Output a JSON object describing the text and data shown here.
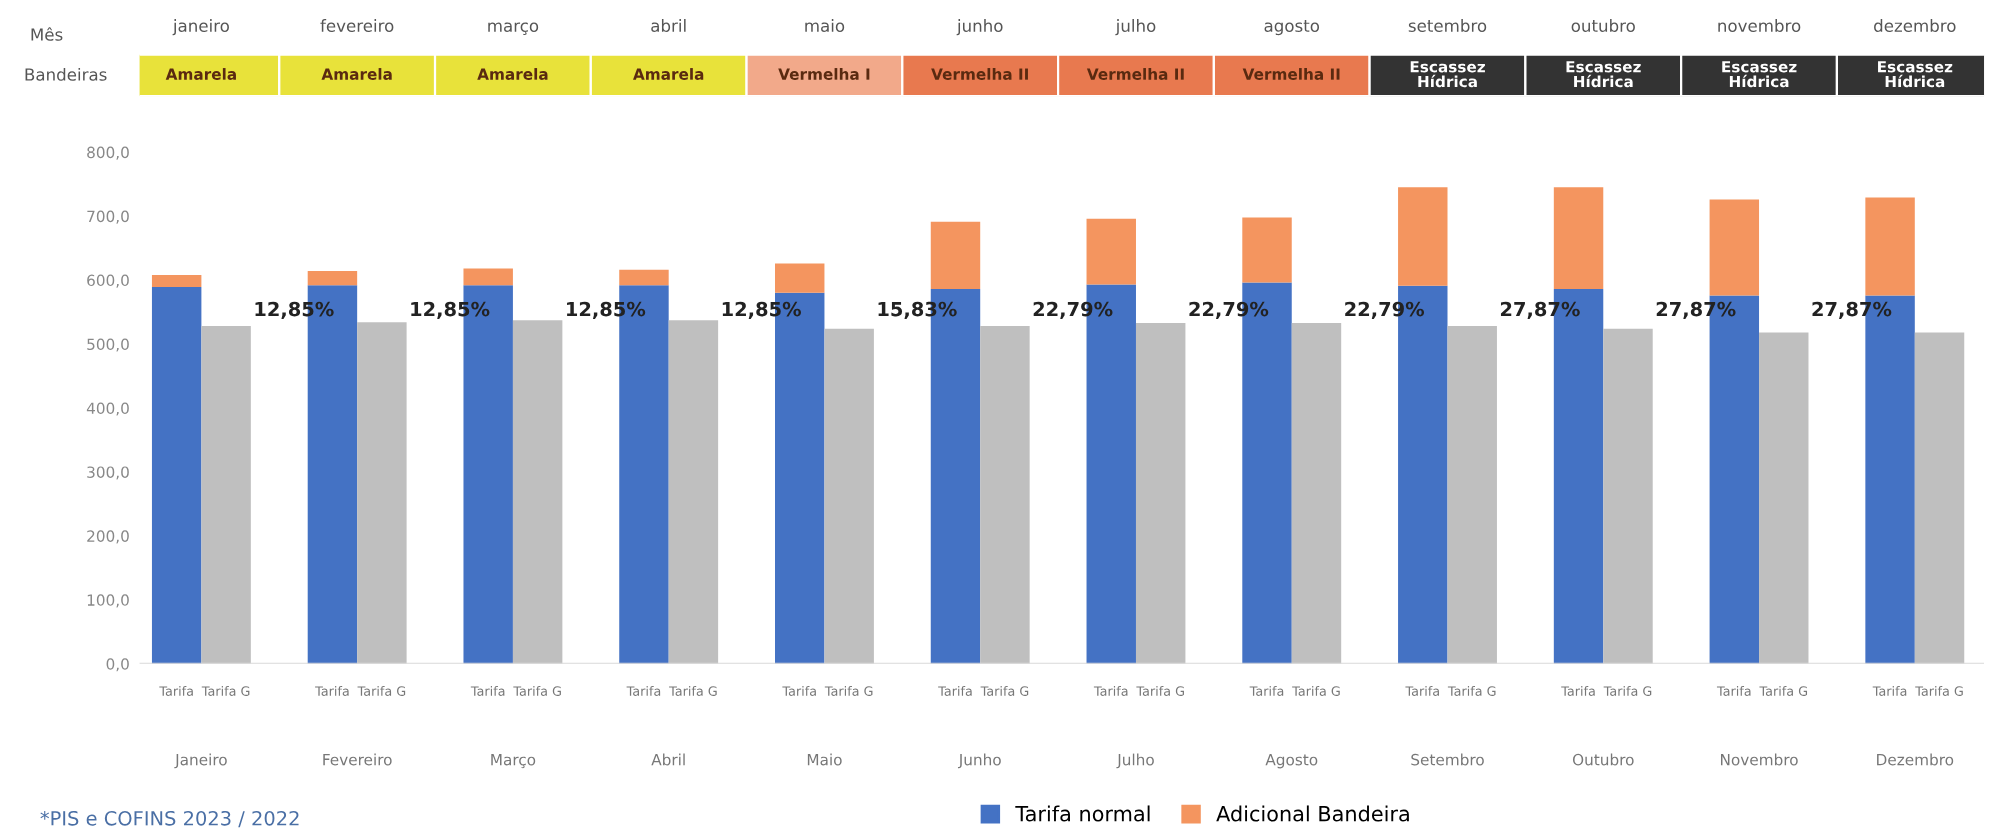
{
  "chart_data": [
    {
      "type": "other",
      "annotations": [
        "Mês",
        "janeiro",
        "fevereiro",
        "março",
        "abril",
        "maio",
        "junho",
        "julho",
        "agosto",
        "setembro",
        "outubro",
        "novembro",
        "dezembro",
        "Bandeiras",
        "Amarela",
        "Amarela",
        "Amarela",
        "Amarela",
        "Vermelha I",
        "Vermelha II",
        "Vermelha II",
        "Vermelha II",
        "Escassez\nHídrica",
        "Escassez\nHídrica",
        "Escassez\nHídrica",
        "Escassez\nHídrica"
      ],
      "colors": [
        "#e8e23a",
        "#e8e23a",
        "#e8e23a",
        "#e8e23a",
        "#f2a98a",
        "#e8794f",
        "#e8794f",
        "#e8794f",
        "#333333",
        "#333333",
        "#333333",
        "#333333"
      ]
    },
    {
      "type": "bar",
      "stacked": true,
      "categories": [
        "Tarifa",
        "Tarifa G",
        "Tarifa",
        "Tarifa G",
        "Tarifa",
        "Tarifa G",
        "Tarifa",
        "Tarifa G",
        "Tarifa",
        "Tarifa G",
        "Tarifa",
        "Tarifa G",
        "Tarifa",
        "Tarifa G",
        "Tarifa",
        "Tarifa G",
        "Tarifa",
        "Tarifa G",
        "Tarifa",
        "Tarifa G",
        "Tarifa",
        "Tarifa G",
        "Tarifa",
        "Tarifa G"
      ],
      "series": [
        {
          "name": "Tarifa normal",
          "color": "#4472c4",
          "values": [
            589,
            null,
            592,
            null,
            592,
            null,
            592,
            null,
            580,
            null,
            586,
            null,
            593,
            null,
            596,
            null,
            591,
            null,
            586,
            null,
            576,
            null,
            576,
            null
          ]
        },
        {
          "name": "Adicional Bandeira",
          "color": "#f4955f",
          "values": [
            19,
            null,
            22,
            null,
            26,
            null,
            24,
            null,
            46,
            null,
            105,
            null,
            103,
            null,
            102,
            null,
            154,
            null,
            159,
            null,
            150,
            null,
            153,
            null
          ]
        },
        {
          "color": "#bfbfbf",
          "values": [
            null,
            528,
            null,
            534,
            null,
            537,
            null,
            537,
            null,
            524,
            null,
            528,
            null,
            533,
            null,
            533,
            null,
            528,
            null,
            524,
            null,
            518,
            null,
            518
          ]
        }
      ],
      "ylim": [
        0,
        800
      ],
      "yticks": [
        {
          "value": 0,
          "label": "0,0"
        },
        {
          "value": 100,
          "label": "100,0"
        },
        {
          "value": 200,
          "label": "200,0"
        },
        {
          "value": 300,
          "label": "300,0"
        },
        {
          "value": 400,
          "label": "400,0"
        },
        {
          "value": 500,
          "label": "500,0"
        },
        {
          "value": 600,
          "label": "600,0"
        },
        {
          "value": 700,
          "label": "700,0"
        },
        {
          "value": 800,
          "label": "800,0"
        }
      ],
      "legend": "bottom",
      "grid": false,
      "annotations": [
        "Janeiro",
        "Fevereiro",
        "Março",
        "Abril",
        "Maio",
        "Junho",
        "Julho",
        "Agosto",
        "Setembro",
        "Outubro",
        "Novembro",
        "Dezembro",
        "12,85%",
        "12,85%",
        "12,85%",
        "12,85%",
        "15,83%",
        "22,79%",
        "22,79%",
        "22,79%",
        "27,87%",
        "27,87%",
        "27,87%",
        "*PIS e COFINS 2023 / 2022"
      ]
    }
  ]
}
